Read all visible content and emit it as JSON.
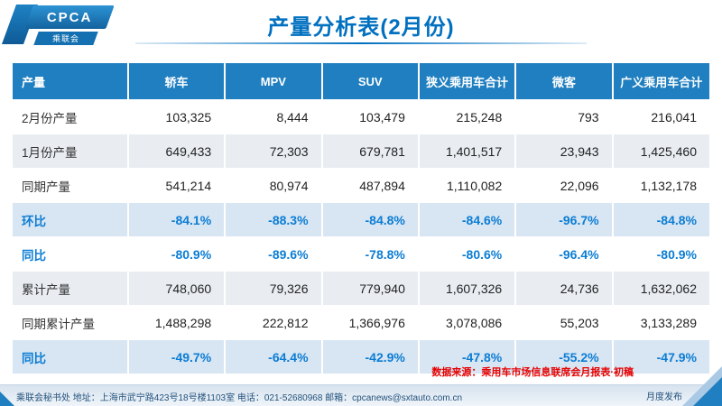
{
  "logo": {
    "main": "CPCA",
    "sub": "乘联会"
  },
  "title": "产量分析表(2月份)",
  "chart_data": {
    "type": "table",
    "columns": [
      "产量",
      "轿车",
      "MPV",
      "SUV",
      "狭义乘用车合计",
      "微客",
      "广义乘用车合计"
    ],
    "rows": [
      {
        "label": "2月份产量",
        "kind": "value",
        "values": [
          "103,325",
          "8,444",
          "103,479",
          "215,248",
          "793",
          "216,041"
        ]
      },
      {
        "label": "1月份产量",
        "kind": "value",
        "values": [
          "649,433",
          "72,303",
          "679,781",
          "1,401,517",
          "23,943",
          "1,425,460"
        ]
      },
      {
        "label": "同期产量",
        "kind": "value",
        "values": [
          "541,214",
          "80,974",
          "487,894",
          "1,110,082",
          "22,096",
          "1,132,178"
        ]
      },
      {
        "label": "环比",
        "kind": "percent",
        "values": [
          "-84.1%",
          "-88.3%",
          "-84.8%",
          "-84.6%",
          "-96.7%",
          "-84.8%"
        ]
      },
      {
        "label": "同比",
        "kind": "percent",
        "values": [
          "-80.9%",
          "-89.6%",
          "-78.8%",
          "-80.6%",
          "-96.4%",
          "-80.9%"
        ]
      },
      {
        "label": "累计产量",
        "kind": "value",
        "values": [
          "748,060",
          "79,326",
          "779,940",
          "1,607,326",
          "24,736",
          "1,632,062"
        ]
      },
      {
        "label": "同期累计产量",
        "kind": "value",
        "values": [
          "1,488,298",
          "222,812",
          "1,366,976",
          "3,078,086",
          "55,203",
          "3,133,289"
        ]
      },
      {
        "label": "同比",
        "kind": "percent",
        "values": [
          "-49.7%",
          "-64.4%",
          "-42.9%",
          "-47.8%",
          "-55.2%",
          "-47.9%"
        ]
      }
    ]
  },
  "source_note": "数据来源：乘用车市场信息联席会月报表·初稿",
  "footer": {
    "info": "乘联会秘书处  地址：上海市武宁路423号18号楼1103室  电话：021-52680968  邮箱：cpcanews@sxtauto.com.cn",
    "corner": "月度发布"
  },
  "colors": {
    "title_blue": "#0070c0",
    "header_bg": "#1f7fc0",
    "percent_blue": "#0b7dd4",
    "source_red": "#e60000"
  }
}
